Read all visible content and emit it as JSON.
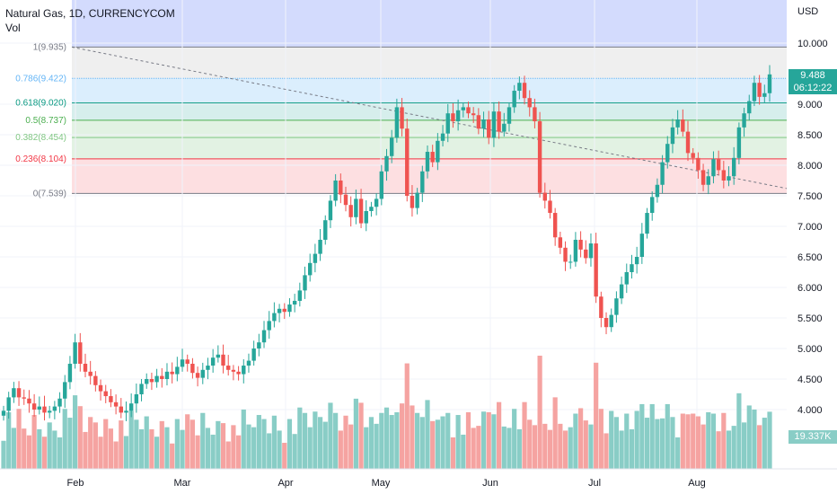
{
  "header": {
    "title": "Natural Gas, 1D, CURRENCYCOM",
    "sub": "Vol"
  },
  "axis": {
    "currency": "USD",
    "ticks": [
      "10.000",
      "9.000",
      "8.500",
      "8.000",
      "7.500",
      "7.000",
      "6.500",
      "6.000",
      "5.500",
      "5.000",
      "4.500",
      "4.000"
    ],
    "tick_values": [
      10,
      9,
      8.5,
      8,
      7.5,
      7,
      6.5,
      6,
      5.5,
      5,
      4.5,
      4
    ]
  },
  "price_tag": {
    "price": "9.488",
    "countdown": "06:12:22",
    "value": 9.488,
    "color": "#26a69a"
  },
  "volume_tag": {
    "label": "19.337K",
    "color": "#89cdc6"
  },
  "fib": [
    {
      "label": "1(9.935)",
      "value": 9.935,
      "color": "#787b86"
    },
    {
      "label": "0.786(9.422)",
      "value": 9.422,
      "color": "#64b5f6"
    },
    {
      "label": "0.618(9.020)",
      "value": 9.02,
      "color": "#089981"
    },
    {
      "label": "0.5(8.737)",
      "value": 8.737,
      "color": "#4caf50"
    },
    {
      "label": "0.382(8.454)",
      "value": 8.454,
      "color": "#81c784"
    },
    {
      "label": "0.236(8.104)",
      "value": 8.104,
      "color": "#f23645"
    },
    {
      "label": "0(7.539)",
      "value": 7.539,
      "color": "#787b86"
    }
  ],
  "colors": {
    "up": "#26a69a",
    "down": "#ef5350",
    "vol_up": "#89cdc6",
    "vol_down": "#f5a3a1",
    "grid": "#f0f3fa"
  },
  "chart_data": {
    "type": "candlestick",
    "symbol": "Natural Gas",
    "interval": "1D",
    "ylim": [
      3.6,
      10.6
    ],
    "x_labels": [
      "Feb",
      "Mar",
      "Apr",
      "May",
      "Jun",
      "Jul",
      "Aug"
    ],
    "closes": [
      3.98,
      4.2,
      4.35,
      4.2,
      4.18,
      4.1,
      4.0,
      4.05,
      3.95,
      3.98,
      4.05,
      4.18,
      4.45,
      4.75,
      5.1,
      4.75,
      4.62,
      4.55,
      4.4,
      4.3,
      4.22,
      4.12,
      4.05,
      3.95,
      3.98,
      4.1,
      4.25,
      4.42,
      4.5,
      4.45,
      4.55,
      4.5,
      4.62,
      4.58,
      4.7,
      4.82,
      4.75,
      4.6,
      4.52,
      4.65,
      4.72,
      4.85,
      4.9,
      4.72,
      4.65,
      4.62,
      4.58,
      4.72,
      4.8,
      5.0,
      5.1,
      5.3,
      5.45,
      5.58,
      5.65,
      5.6,
      5.72,
      5.78,
      5.95,
      6.2,
      6.4,
      6.55,
      6.78,
      7.1,
      7.42,
      7.75,
      7.52,
      7.35,
      7.15,
      7.45,
      7.05,
      7.25,
      7.32,
      7.45,
      7.9,
      8.15,
      8.45,
      8.95,
      8.6,
      7.5,
      7.3,
      7.55,
      7.9,
      8.22,
      8.05,
      8.4,
      8.52,
      8.85,
      8.72,
      8.9,
      8.95,
      8.85,
      8.82,
      8.6,
      8.75,
      8.45,
      8.88,
      8.55,
      8.68,
      8.95,
      9.22,
      9.35,
      9.1,
      8.95,
      8.72,
      7.55,
      7.42,
      7.22,
      6.82,
      6.65,
      6.42,
      6.42,
      6.78,
      6.62,
      6.48,
      6.72,
      5.85,
      5.5,
      5.35,
      5.55,
      5.82,
      6.05,
      6.25,
      6.38,
      6.5,
      6.88,
      7.22,
      7.48,
      7.68,
      8.05,
      8.35,
      8.62,
      8.75,
      8.55,
      8.2,
      8.12,
      7.92,
      7.68,
      7.82,
      8.1,
      7.92,
      7.75,
      7.82,
      8.12,
      8.62,
      8.85,
      9.05,
      9.35,
      9.12,
      9.18,
      9.488
    ],
    "volume_ylim": [
      0,
      4.5
    ],
    "volume_max_label": "19.337K"
  }
}
